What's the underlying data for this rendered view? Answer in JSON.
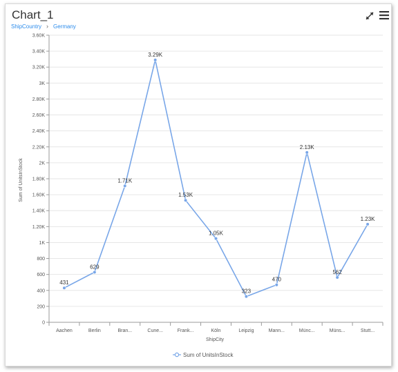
{
  "widget": {
    "title": "Chart_1",
    "breadcrumb": [
      "ShipCountry",
      "Germany"
    ],
    "breadcrumb_separator": "›",
    "icons": [
      "expand-icon",
      "menu-icon"
    ]
  },
  "chart_data": {
    "type": "line",
    "categories": [
      "Aachen",
      "Berlin",
      "Bran...",
      "Cune...",
      "Frank...",
      "Köln",
      "Leipzig",
      "Mann...",
      "Münc...",
      "Müns...",
      "Stutt..."
    ],
    "series": [
      {
        "name": "Sum of UnitsInStock",
        "values": [
          431,
          629,
          1710,
          3290,
          1530,
          1050,
          323,
          470,
          2130,
          562,
          1230
        ],
        "labels": [
          "431",
          "629",
          "1.71K",
          "3.29K",
          "1.53K",
          "1.05K",
          "323",
          "470",
          "2.13K",
          "562",
          "1.23K"
        ],
        "color": "#78a6e8"
      }
    ],
    "xlabel": "ShipCity",
    "ylabel": "Sum of UnitsInStock",
    "ylim": [
      0,
      3600
    ],
    "yticks": [
      0,
      200,
      400,
      600,
      800,
      1000,
      1200,
      1400,
      1600,
      1800,
      2000,
      2200,
      2400,
      2600,
      2800,
      3000,
      3200,
      3400,
      3600
    ],
    "ytick_labels": [
      "0",
      "200",
      "400",
      "600",
      "800",
      "1K",
      "1.20K",
      "1.40K",
      "1.60K",
      "1.80K",
      "2K",
      "2.20K",
      "2.40K",
      "2.60K",
      "2.80K",
      "3K",
      "3.20K",
      "3.40K",
      "3.60K"
    ],
    "grid": true,
    "legend_position": "bottom-center"
  }
}
